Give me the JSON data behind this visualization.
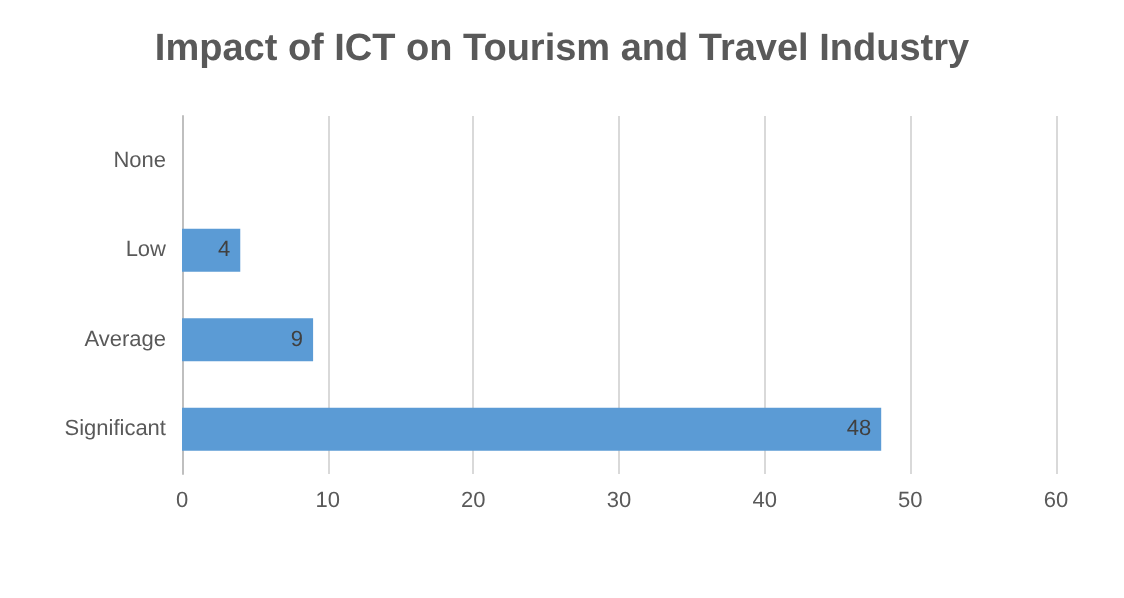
{
  "chart_data": {
    "type": "bar",
    "orientation": "horizontal",
    "title": "Impact of ICT on Tourism and Travel Industry",
    "categories": [
      "None",
      "Low",
      "Average",
      "Significant"
    ],
    "values": [
      0,
      4,
      9,
      48
    ],
    "color": "#5b9bd5",
    "value_labels": [
      null,
      "4",
      "9",
      "48"
    ],
    "xlim": [
      0,
      60
    ],
    "xticks": [
      0,
      10,
      20,
      30,
      40,
      50,
      60
    ],
    "grid": "x"
  }
}
